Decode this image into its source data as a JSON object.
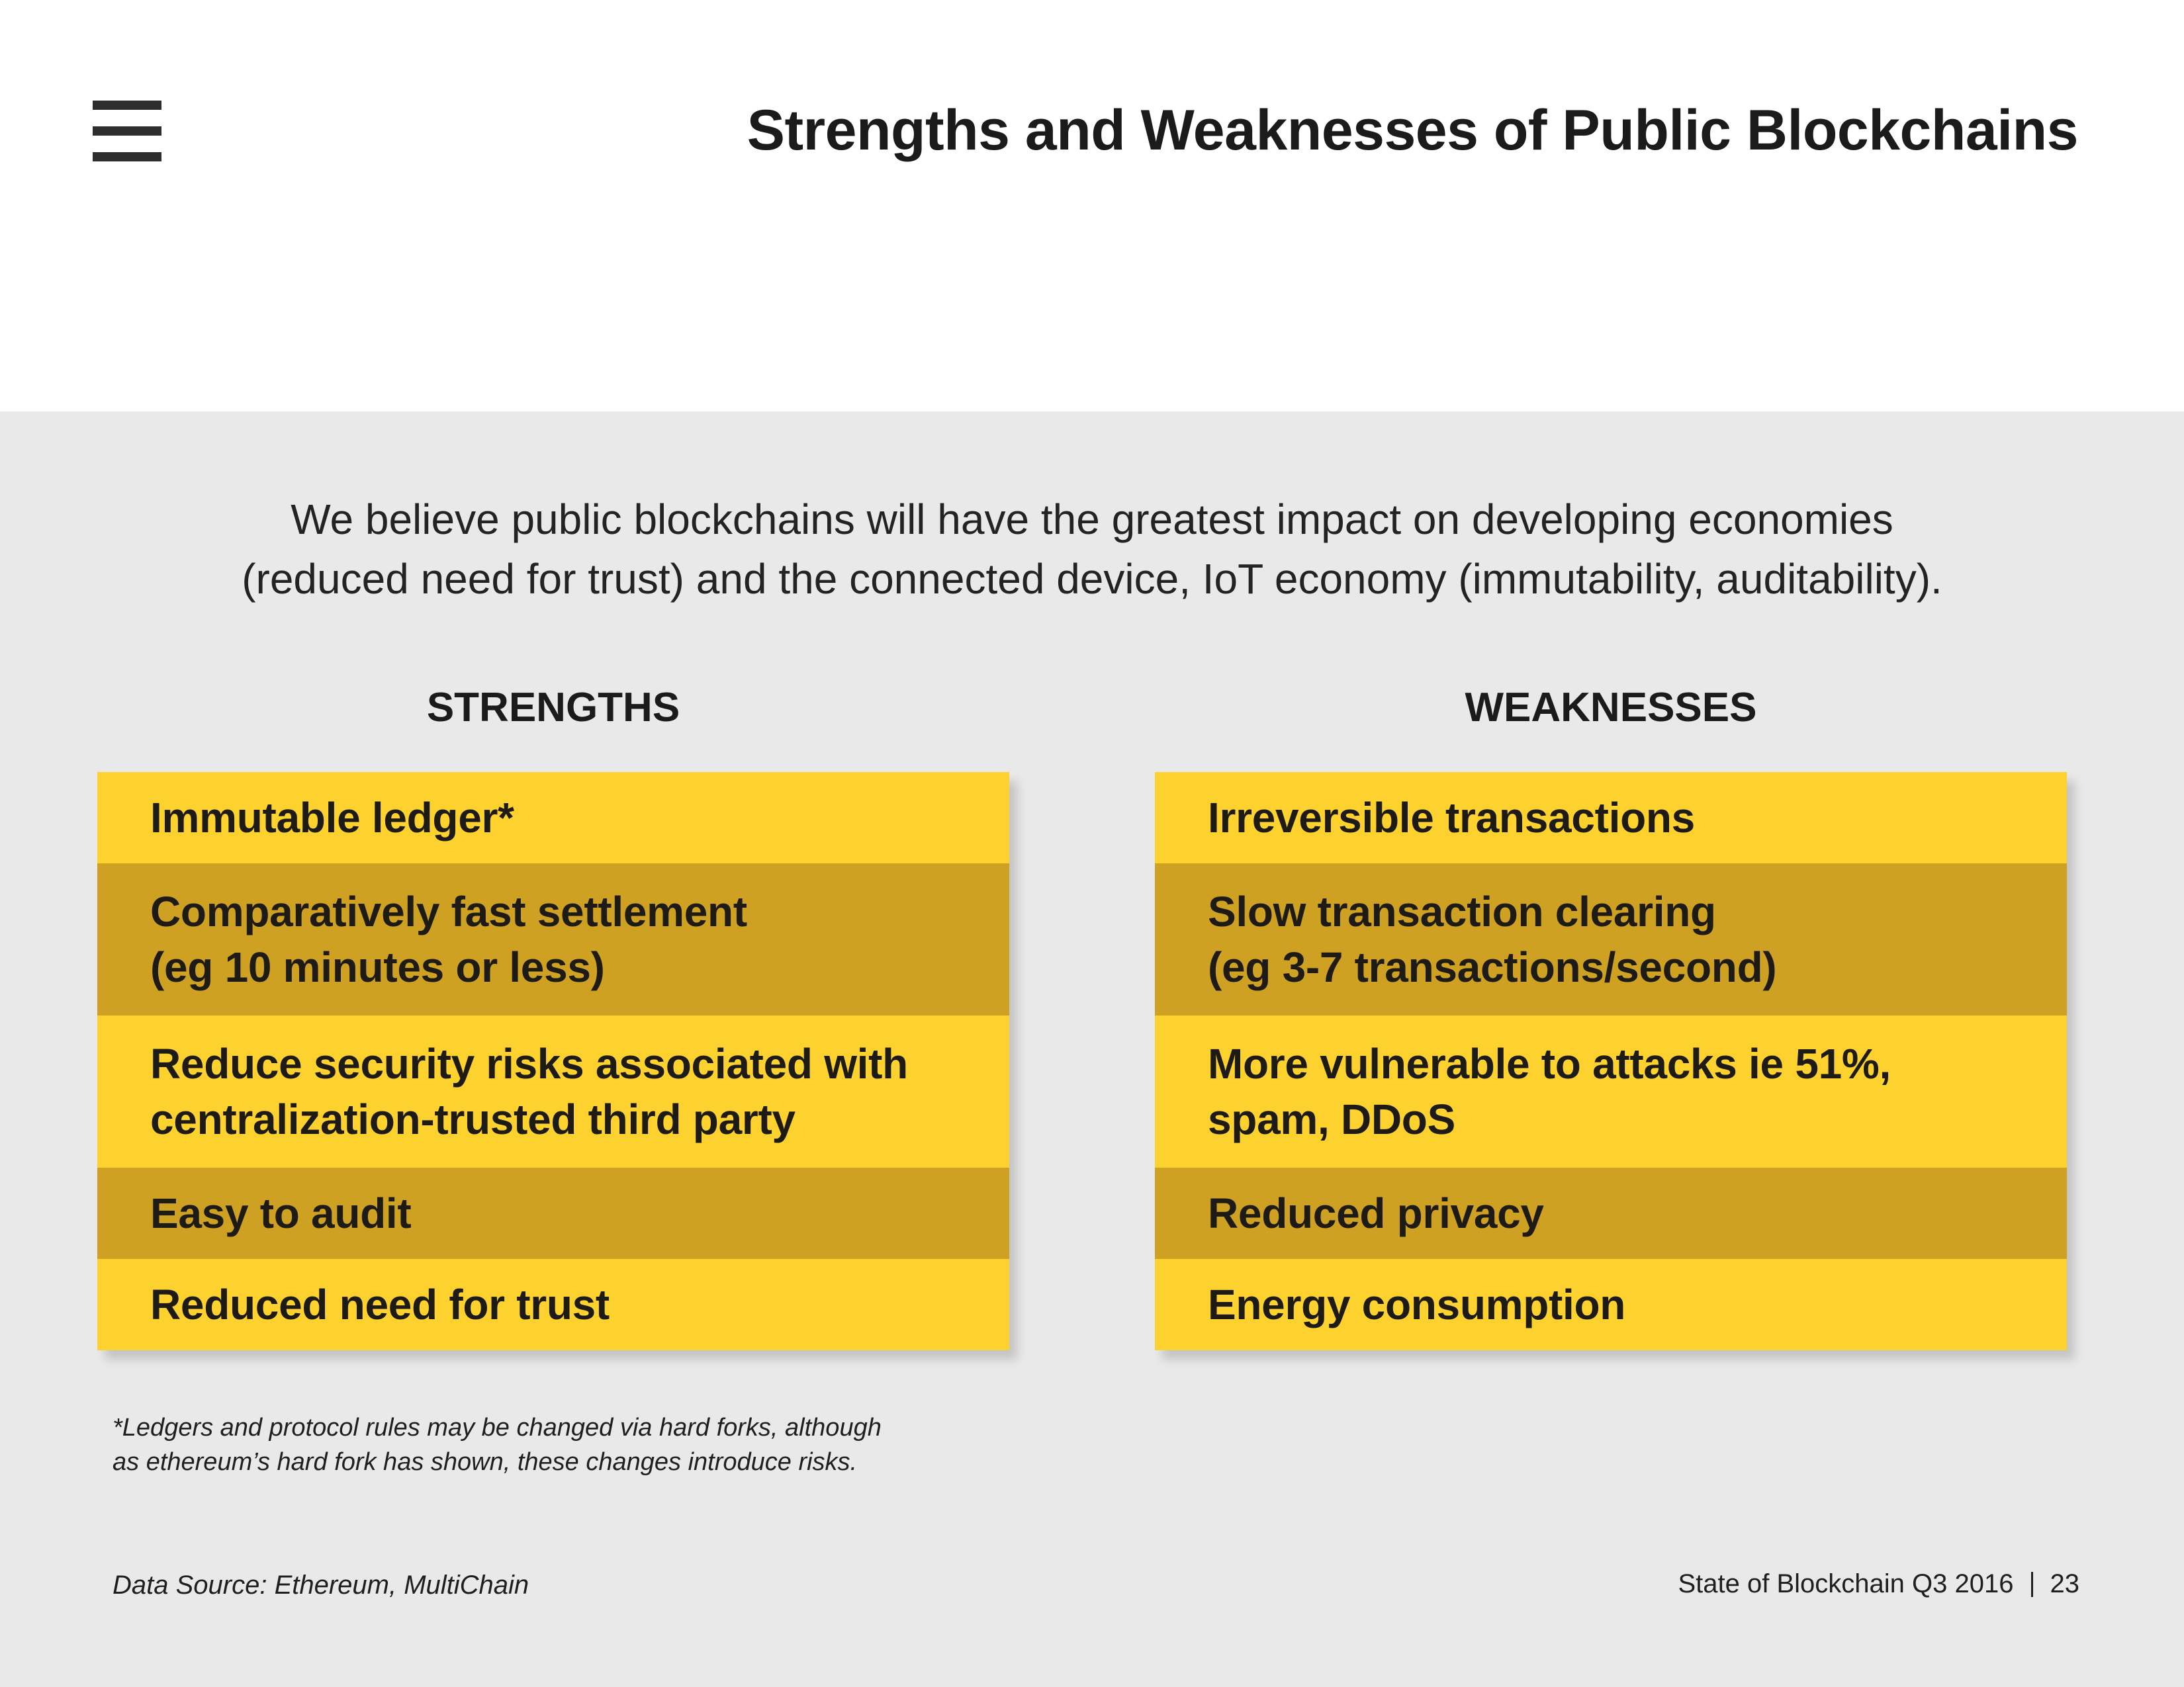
{
  "header": {
    "title": "Strengths and Weaknesses of Public Blockchains",
    "menu_icon": "hamburger-menu-icon"
  },
  "intro": {
    "line1": "We believe public blockchains will have the greatest impact on developing economies",
    "line2": "(reduced need for trust) and the connected device, IoT economy (immutability, auditability)."
  },
  "strengths": {
    "heading": "STRENGTHS",
    "items": [
      "Immutable ledger*",
      "Comparatively fast settlement\n(eg 10 minutes or less)",
      "Reduce security risks associated with\ncentralization-trusted third party",
      "Easy to audit",
      "Reduced need for trust"
    ]
  },
  "weaknesses": {
    "heading": "WEAKNESSES",
    "items": [
      "Irreversible transactions",
      "Slow transaction clearing\n(eg 3-7 transactions/second)",
      "More vulnerable to attacks ie 51%,\nspam, DDoS",
      "Reduced privacy",
      "Energy consumption"
    ]
  },
  "footnote": {
    "line1": "*Ledgers and protocol rules may be changed via hard forks, although",
    "line2": "as ethereum’s hard fork has shown, these changes introduce risks."
  },
  "footer": {
    "source": "Data Source: Ethereum, MultiChain",
    "report": "State of Blockchain Q3 2016",
    "page_number": "23"
  },
  "colors": {
    "row_light": "#fdd22f",
    "row_dark": "#cfa122",
    "band_background": "#e9e9e9"
  }
}
